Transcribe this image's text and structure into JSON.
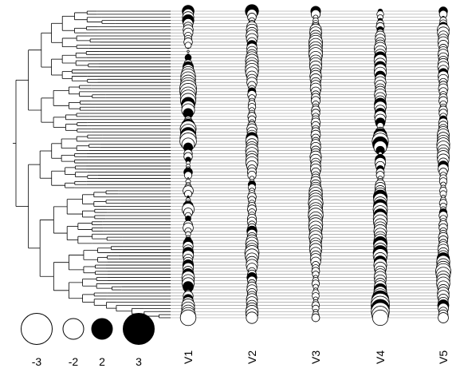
{
  "chart_data": {
    "type": "phylogenetic-bubble-plot",
    "columns": [
      "V1",
      "V2",
      "V3",
      "V4",
      "V5"
    ],
    "n_tips": 100,
    "size_scale": "bubble area ∝ |value|; open = negative, filled = positive",
    "legend": {
      "entries": [
        {
          "label": "-3",
          "value": -3
        },
        {
          "label": "-2",
          "value": -2
        },
        {
          "label": "2",
          "value": 2
        },
        {
          "label": "3",
          "value": 3
        }
      ]
    },
    "profiles": {
      "V1": {
        "anchors": [
          [
            0,
            -1.3
          ],
          [
            5,
            -0.9
          ],
          [
            10,
            -0.5
          ],
          [
            15,
            0.3
          ],
          [
            20,
            -1.7
          ],
          [
            26,
            -2.6
          ],
          [
            32,
            -1.4
          ],
          [
            38,
            2.2
          ],
          [
            42,
            2.4
          ],
          [
            46,
            -0.7
          ],
          [
            52,
            0.6
          ],
          [
            58,
            -0.8
          ],
          [
            64,
            1.2
          ],
          [
            70,
            -0.9
          ],
          [
            76,
            1.0
          ],
          [
            82,
            0.9
          ],
          [
            88,
            1.5
          ],
          [
            92,
            -0.8
          ],
          [
            99,
            -2.1
          ]
        ],
        "fill_pattern": [
          1,
          0,
          0,
          1,
          0,
          0,
          0,
          1,
          0,
          0,
          1,
          0,
          0,
          0,
          1
        ]
      },
      "V2": {
        "anchors": [
          [
            0,
            1.6
          ],
          [
            6,
            -1.3
          ],
          [
            12,
            -0.8
          ],
          [
            18,
            -1.7
          ],
          [
            24,
            -0.6
          ],
          [
            30,
            -0.4
          ],
          [
            36,
            -0.5
          ],
          [
            42,
            -1.3
          ],
          [
            48,
            -1.4
          ],
          [
            54,
            -0.3
          ],
          [
            60,
            -0.5
          ],
          [
            66,
            -0.6
          ],
          [
            72,
            -0.8
          ],
          [
            78,
            -1.8
          ],
          [
            84,
            -0.7
          ],
          [
            90,
            -0.8
          ],
          [
            99,
            -1.4
          ]
        ],
        "fill_pattern": [
          1,
          0,
          0,
          0,
          1,
          0,
          0,
          1,
          0,
          0,
          0,
          1,
          0,
          0,
          0
        ]
      },
      "V3": {
        "anchors": [
          [
            0,
            0.9
          ],
          [
            6,
            -1.1
          ],
          [
            12,
            -1.8
          ],
          [
            18,
            -1.2
          ],
          [
            24,
            -1.0
          ],
          [
            30,
            -0.5
          ],
          [
            36,
            -0.6
          ],
          [
            42,
            -0.7
          ],
          [
            48,
            -1.1
          ],
          [
            54,
            -0.6
          ],
          [
            60,
            -1.8
          ],
          [
            66,
            -1.9
          ],
          [
            72,
            -1.5
          ],
          [
            78,
            -1.2
          ],
          [
            84,
            -0.4
          ],
          [
            90,
            -0.3
          ],
          [
            99,
            -0.4
          ]
        ],
        "fill_pattern": [
          1,
          0,
          0,
          0,
          0,
          1,
          0,
          0,
          0,
          1,
          0,
          0,
          0,
          0,
          1
        ]
      },
      "V4": {
        "anchors": [
          [
            0,
            -0.2
          ],
          [
            6,
            -0.5
          ],
          [
            12,
            -1.2
          ],
          [
            18,
            -1.3
          ],
          [
            24,
            -1.0
          ],
          [
            30,
            -1.2
          ],
          [
            36,
            -1.0
          ],
          [
            42,
            2.6
          ],
          [
            48,
            -1.0
          ],
          [
            54,
            -0.3
          ],
          [
            60,
            -1.6
          ],
          [
            66,
            -1.8
          ],
          [
            72,
            -1.3
          ],
          [
            78,
            -1.8
          ],
          [
            84,
            -1.2
          ],
          [
            90,
            -1.3
          ],
          [
            95,
            -3.3
          ],
          [
            99,
            -2.4
          ]
        ],
        "fill_pattern": [
          1,
          0,
          0,
          1,
          0,
          0,
          1,
          0,
          0,
          0,
          1,
          0,
          0,
          1,
          0
        ]
      },
      "V5": {
        "anchors": [
          [
            0,
            0.7
          ],
          [
            6,
            -1.2
          ],
          [
            12,
            -0.8
          ],
          [
            18,
            -1.0
          ],
          [
            24,
            -0.7
          ],
          [
            30,
            -0.5
          ],
          [
            36,
            -0.6
          ],
          [
            42,
            -1.5
          ],
          [
            48,
            -1.2
          ],
          [
            54,
            -0.4
          ],
          [
            60,
            -0.3
          ],
          [
            66,
            -0.5
          ],
          [
            72,
            -0.6
          ],
          [
            78,
            -1.0
          ],
          [
            84,
            -2.0
          ],
          [
            90,
            -1.2
          ],
          [
            99,
            -0.8
          ]
        ],
        "fill_pattern": [
          1,
          0,
          0,
          0,
          0,
          1,
          0,
          0,
          0,
          0,
          1,
          0,
          0,
          0,
          0
        ]
      }
    },
    "tree": {
      "clades": [
        [
          [
            [
              [
                [
                  [
                    0,
                    1
                  ],
                  [
                    2,
                    [
                      3,
                      4
                    ]
                  ]
                ],
                [
                  [
                    5,
                    6
                  ],
                  7
                ]
              ],
              [
                [
                  8,
                  [
                    9,
                    10
                  ]
                ],
                [
                  11,
                  12
                ]
              ]
            ],
            [
              [
                [
                  [
                    13,
                    14
                  ],
                  15
                ],
                [
                  16,
                  [
                    17,
                    18
                  ]
                ]
              ],
              [
                [
                  19,
                  20
                ],
                [
                  21,
                  [
                    22,
                    23
                  ]
                ]
              ]
            ]
          ],
          [
            [
              [
                [
                  24,
                  25
                ],
                [
                  26,
                  [
                    27,
                    28
                  ]
                ]
              ],
              [
                [
                  29,
                  30
                ],
                [
                  31,
                  32
                ]
              ]
            ],
            [
              [
                [
                  33,
                  34
                ],
                35
              ],
              [
                [
                  36,
                  37
                ],
                [
                  38,
                  39
                ]
              ]
            ]
          ]
        ],
        [
          [
            [
              [
                [
                  [
                    40,
                    41
                  ],
                  42
                ],
                [
                  [
                    43,
                    44
                  ],
                  45
                ]
              ],
              [
                [
                  46,
                  47
                ],
                [
                  48,
                  49
                ]
              ]
            ],
            [
              [
                [
                  50,
                  51
                ],
                [
                  52,
                  [
                    53,
                    54
                  ]
                ]
              ],
              [
                [
                  55,
                  56
                ],
                57
              ]
            ]
          ],
          [
            [
              [
                [
                  [
                    [
                      58,
                      59
                    ],
                    60
                  ],
                  [
                    [
                      61,
                      62
                    ],
                    63
                  ]
                ],
                [
                  [
                    64,
                    65
                  ],
                  [
                    66,
                    67
                  ]
                ]
              ],
              [
                [
                  [
                    68,
                    69
                  ],
                  [
                    70,
                    71
                  ]
                ],
                [
                  [
                    72,
                    [
                      73,
                      74
                    ]
                  ],
                  75
                ]
              ]
            ],
            [
              [
                [
                  [
                    [
                      76,
                      77
                    ],
                    78
                  ],
                  [
                    [
                      79,
                      80
                    ],
                    81
                  ]
                ],
                [
                  [
                    82,
                    83
                  ],
                  [
                    84,
                    85
                  ]
                ]
              ],
              [
                [
                  [
                    86,
                    87
                  ],
                  [
                    88,
                    [
                      89,
                      90
                    ]
                  ]
                ],
                [
                  [
                    91,
                    92
                  ],
                  [
                    93,
                    [
                      94,
                      [
                        95,
                        [
                          96,
                          [
                            97,
                            [
                              98,
                              99
                            ]
                          ]
                        ]
                      ]
                    ]
                  ]
                ]
              ]
            ]
          ]
        ]
      ]
    }
  }
}
